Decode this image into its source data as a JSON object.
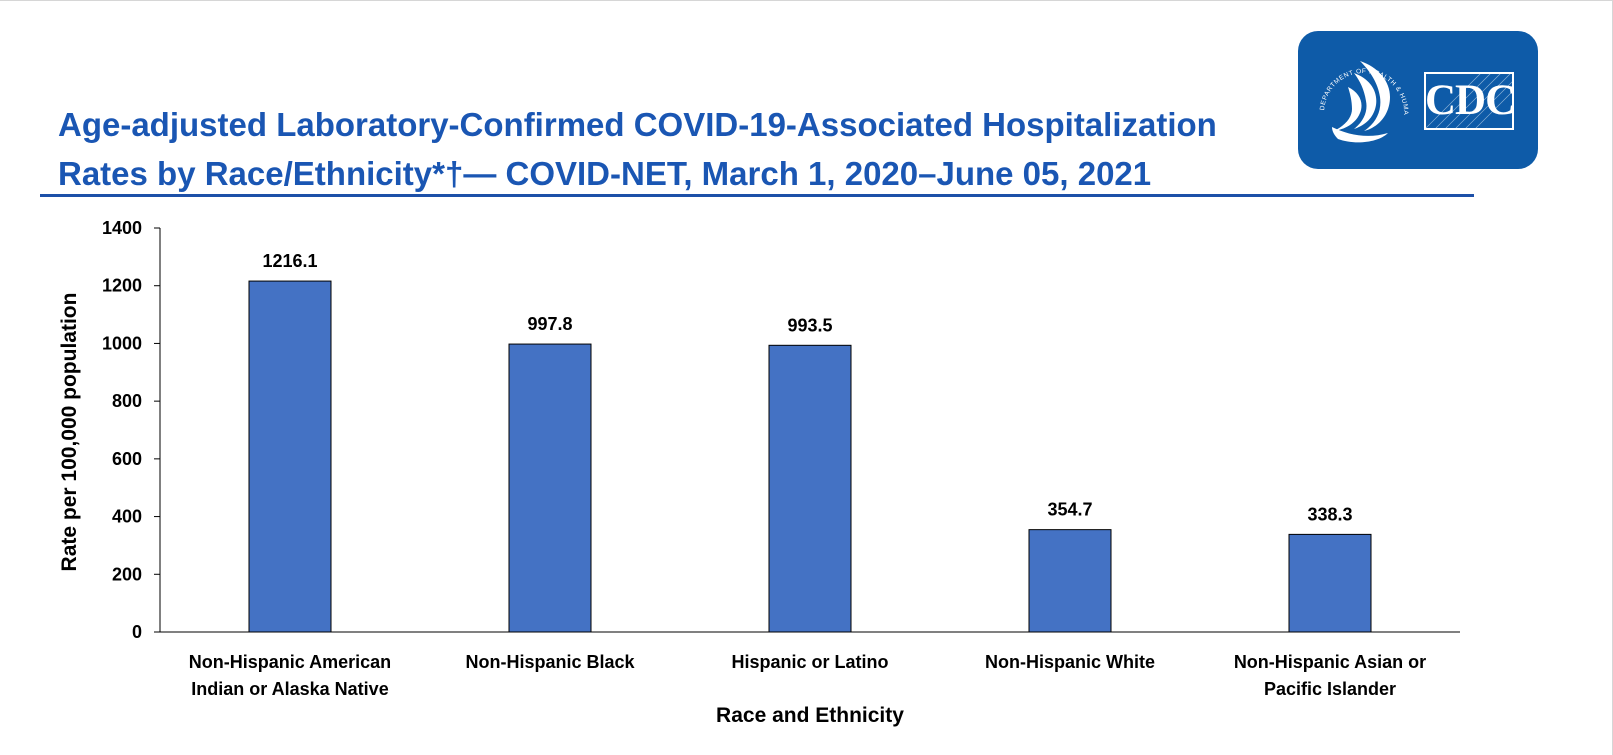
{
  "header": {
    "title_line1": "Age-adjusted Laboratory-Confirmed COVID-19-Associated Hospitalization",
    "title_line2": "Rates by Race/Ethnicity*†— COVID-NET, March 1, 2020–June 05, 2021"
  },
  "logo": {
    "text": "CDC",
    "seal_text": "DEPARTMENT OF HEALTH & HUMAN SERVICES USA",
    "icon": "hhs-eagle-icon",
    "background_color": "#0e5ba8"
  },
  "colors": {
    "title": "#1a56b3",
    "title_rule": "#1d50a8",
    "bar_fill": "#4472c4",
    "bar_stroke": "#000000"
  },
  "chart_data": {
    "type": "bar",
    "categories": [
      [
        "Non-Hispanic American",
        "Indian or Alaska Native"
      ],
      [
        "Non-Hispanic Black"
      ],
      [
        "Hispanic or Latino"
      ],
      [
        "Non-Hispanic White"
      ],
      [
        "Non-Hispanic Asian or",
        "Pacific Islander"
      ]
    ],
    "values": [
      1216.1,
      997.8,
      993.5,
      354.7,
      338.3
    ],
    "data_labels": [
      "1216.1",
      "997.8",
      "993.5",
      "354.7",
      "338.3"
    ],
    "xlabel": "Race and Ethnicity",
    "ylabel": "Rate per 100,000 population",
    "ylim": [
      0,
      1400
    ],
    "yticks": [
      0,
      200,
      400,
      600,
      800,
      1000,
      1200,
      1400
    ],
    "grid": false,
    "legend": "none"
  }
}
